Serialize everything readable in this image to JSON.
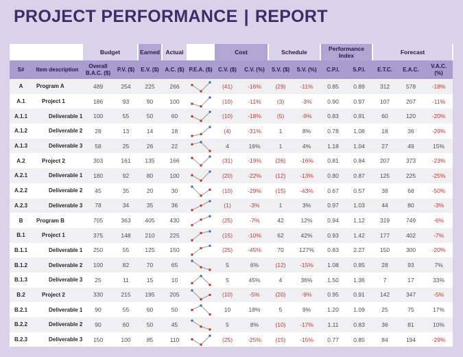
{
  "title": {
    "left": "PROJECT PERFORMANCE",
    "divider": "|",
    "right": "REPORT"
  },
  "colors": {
    "page_bg": "#d9d3e9",
    "title": "#3b2e68",
    "header_bg": "#a99cce",
    "group_light": "#d9d3ea",
    "group_medium": "#b2a5d3",
    "negative": "#bf3a36",
    "sparkline_marker": "#c0392b",
    "sparkline_high": "#3f6ec0"
  },
  "table": {
    "group_headers": [
      {
        "label": "",
        "span": 2,
        "tone": "none"
      },
      {
        "label": "Budget",
        "span": 2,
        "tone": "light"
      },
      {
        "label": "Earned",
        "span": 1,
        "tone": "medium"
      },
      {
        "label": "Actual",
        "span": 1,
        "tone": "light"
      },
      {
        "label": "",
        "span": 1,
        "tone": "none"
      },
      {
        "label": "Cost",
        "span": 2,
        "tone": "medium"
      },
      {
        "label": "Schedule",
        "span": 2,
        "tone": "light"
      },
      {
        "label": "Performance Index",
        "span": 2,
        "tone": "medium"
      },
      {
        "label": "Forecast",
        "span": 3,
        "tone": "light"
      }
    ],
    "columns": [
      {
        "key": "sn",
        "label": "S#"
      },
      {
        "key": "desc",
        "label": "Item description"
      },
      {
        "key": "bac",
        "label": "Overall B.A.C. ($)"
      },
      {
        "key": "pv",
        "label": "P.V. ($)"
      },
      {
        "key": "ev",
        "label": "E.V. ($)"
      },
      {
        "key": "ac",
        "label": "A.C. ($)"
      },
      {
        "key": "pea",
        "label": "P.E.A. ($)"
      },
      {
        "key": "cv",
        "label": "C.V. ($)"
      },
      {
        "key": "cv_pct",
        "label": "C.V. (%)"
      },
      {
        "key": "sv",
        "label": "S.V. ($)"
      },
      {
        "key": "sv_pct",
        "label": "S.V. (%)"
      },
      {
        "key": "cpi",
        "label": "C.P.I."
      },
      {
        "key": "spi",
        "label": "S.P.I."
      },
      {
        "key": "etc",
        "label": "E.T.C."
      },
      {
        "key": "eac",
        "label": "E.A.C."
      },
      {
        "key": "vac_pct",
        "label": "V.A.C. (%)"
      }
    ],
    "rows": [
      {
        "sn": "A",
        "desc": "Program A",
        "level": 0,
        "bac": "489",
        "pv": "254",
        "ev": "225",
        "ac": "266",
        "cv": "(41)",
        "cv_pct": "-16%",
        "sv": "(29)",
        "sv_pct": "-11%",
        "cpi": "0.85",
        "spi": "0.89",
        "etc": "312",
        "eac": "578",
        "vac_pct": "-18%"
      },
      {
        "sn": "A.1",
        "desc": "Project 1",
        "level": 1,
        "bac": "186",
        "pv": "93",
        "ev": "90",
        "ac": "100",
        "cv": "(10)",
        "cv_pct": "-11%",
        "sv": "(3)",
        "sv_pct": "-3%",
        "cpi": "0.90",
        "spi": "0.97",
        "etc": "107",
        "eac": "207",
        "vac_pct": "-11%"
      },
      {
        "sn": "A.1.1",
        "desc": "Deliverable 1",
        "level": 2,
        "bac": "100",
        "pv": "55",
        "ev": "50",
        "ac": "60",
        "cv": "(10)",
        "cv_pct": "-18%",
        "sv": "(5)",
        "sv_pct": "-9%",
        "cpi": "0.83",
        "spi": "0.91",
        "etc": "60",
        "eac": "120",
        "vac_pct": "-20%"
      },
      {
        "sn": "A.1.2",
        "desc": "Deliverable 2",
        "level": 2,
        "bac": "28",
        "pv": "13",
        "ev": "14",
        "ac": "18",
        "cv": "(4)",
        "cv_pct": "-31%",
        "sv": "1",
        "sv_pct": "8%",
        "cpi": "0.78",
        "spi": "1.08",
        "etc": "18",
        "eac": "36",
        "vac_pct": "-29%"
      },
      {
        "sn": "A.1.3",
        "desc": "Deliverable 3",
        "level": 2,
        "bac": "58",
        "pv": "25",
        "ev": "26",
        "ac": "22",
        "cv": "4",
        "cv_pct": "16%",
        "sv": "1",
        "sv_pct": "4%",
        "cpi": "1.18",
        "spi": "1.04",
        "etc": "27",
        "eac": "49",
        "vac_pct": "15%"
      },
      {
        "sn": "A.2",
        "desc": "Project 2",
        "level": 1,
        "bac": "303",
        "pv": "161",
        "ev": "135",
        "ac": "166",
        "cv": "(31)",
        "cv_pct": "-19%",
        "sv": "(26)",
        "sv_pct": "-16%",
        "cpi": "0.81",
        "spi": "0.84",
        "etc": "207",
        "eac": "373",
        "vac_pct": "-23%"
      },
      {
        "sn": "A.2.1",
        "desc": "Deliverable 1",
        "level": 2,
        "bac": "180",
        "pv": "92",
        "ev": "80",
        "ac": "100",
        "cv": "(20)",
        "cv_pct": "-22%",
        "sv": "(12)",
        "sv_pct": "-13%",
        "cpi": "0.80",
        "spi": "0.87",
        "etc": "125",
        "eac": "225",
        "vac_pct": "-25%"
      },
      {
        "sn": "A.2.2",
        "desc": "Deliverable 2",
        "level": 2,
        "bac": "45",
        "pv": "35",
        "ev": "20",
        "ac": "30",
        "cv": "(10)",
        "cv_pct": "-29%",
        "sv": "(15)",
        "sv_pct": "-43%",
        "cpi": "0.67",
        "spi": "0.57",
        "etc": "38",
        "eac": "68",
        "vac_pct": "-50%"
      },
      {
        "sn": "A.2.3",
        "desc": "Deliverable 3",
        "level": 2,
        "bac": "78",
        "pv": "34",
        "ev": "35",
        "ac": "36",
        "cv": "(1)",
        "cv_pct": "-3%",
        "sv": "1",
        "sv_pct": "3%",
        "cpi": "0.97",
        "spi": "1.03",
        "etc": "44",
        "eac": "80",
        "vac_pct": "-3%"
      },
      {
        "sn": "B",
        "desc": "Program B",
        "level": 0,
        "bac": "705",
        "pv": "363",
        "ev": "405",
        "ac": "430",
        "cv": "(25)",
        "cv_pct": "-7%",
        "sv": "42",
        "sv_pct": "12%",
        "cpi": "0.94",
        "spi": "1.12",
        "etc": "319",
        "eac": "749",
        "vac_pct": "-6%"
      },
      {
        "sn": "B.1",
        "desc": "Project 1",
        "level": 1,
        "bac": "375",
        "pv": "148",
        "ev": "210",
        "ac": "225",
        "cv": "(15)",
        "cv_pct": "-10%",
        "sv": "62",
        "sv_pct": "42%",
        "cpi": "0.93",
        "spi": "1.42",
        "etc": "177",
        "eac": "402",
        "vac_pct": "-7%"
      },
      {
        "sn": "B.1.1",
        "desc": "Deliverable 1",
        "level": 2,
        "bac": "250",
        "pv": "55",
        "ev": "125",
        "ac": "150",
        "cv": "(25)",
        "cv_pct": "-45%",
        "sv": "70",
        "sv_pct": "127%",
        "cpi": "0.83",
        "spi": "2.27",
        "etc": "150",
        "eac": "300",
        "vac_pct": "-20%"
      },
      {
        "sn": "B.1.2",
        "desc": "Deliverable 2",
        "level": 2,
        "bac": "100",
        "pv": "82",
        "ev": "70",
        "ac": "65",
        "cv": "5",
        "cv_pct": "6%",
        "sv": "(12)",
        "sv_pct": "-15%",
        "cpi": "1.08",
        "spi": "0.85",
        "etc": "28",
        "eac": "93",
        "vac_pct": "7%"
      },
      {
        "sn": "B.1.3",
        "desc": "Deliverable 3",
        "level": 2,
        "bac": "25",
        "pv": "11",
        "ev": "15",
        "ac": "10",
        "cv": "5",
        "cv_pct": "45%",
        "sv": "4",
        "sv_pct": "36%",
        "cpi": "1.50",
        "spi": "1.36",
        "etc": "7",
        "eac": "17",
        "vac_pct": "33%"
      },
      {
        "sn": "B.2",
        "desc": "Project 2",
        "level": 1,
        "bac": "330",
        "pv": "215",
        "ev": "195",
        "ac": "205",
        "cv": "(10)",
        "cv_pct": "-5%",
        "sv": "(20)",
        "sv_pct": "-9%",
        "cpi": "0.95",
        "spi": "0.91",
        "etc": "142",
        "eac": "347",
        "vac_pct": "-5%"
      },
      {
        "sn": "B.2.1",
        "desc": "Deliverable 1",
        "level": 2,
        "bac": "90",
        "pv": "55",
        "ev": "60",
        "ac": "50",
        "cv": "10",
        "cv_pct": "18%",
        "sv": "5",
        "sv_pct": "9%",
        "cpi": "1.20",
        "spi": "1.09",
        "etc": "25",
        "eac": "75",
        "vac_pct": "17%"
      },
      {
        "sn": "B.2.2",
        "desc": "Deliverable 2",
        "level": 2,
        "bac": "90",
        "pv": "60",
        "ev": "50",
        "ac": "45",
        "cv": "5",
        "cv_pct": "8%",
        "sv": "(10)",
        "sv_pct": "-17%",
        "cpi": "1.11",
        "spi": "0.83",
        "etc": "36",
        "eac": "81",
        "vac_pct": "10%"
      },
      {
        "sn": "B.2.3",
        "desc": "Deliverable 3",
        "level": 2,
        "bac": "150",
        "pv": "100",
        "ev": "85",
        "ac": "110",
        "cv": "(25)",
        "cv_pct": "-25%",
        "sv": "(15)",
        "sv_pct": "-15%",
        "cpi": "0.77",
        "spi": "0.85",
        "etc": "84",
        "eac": "194",
        "vac_pct": "-29%"
      }
    ]
  }
}
